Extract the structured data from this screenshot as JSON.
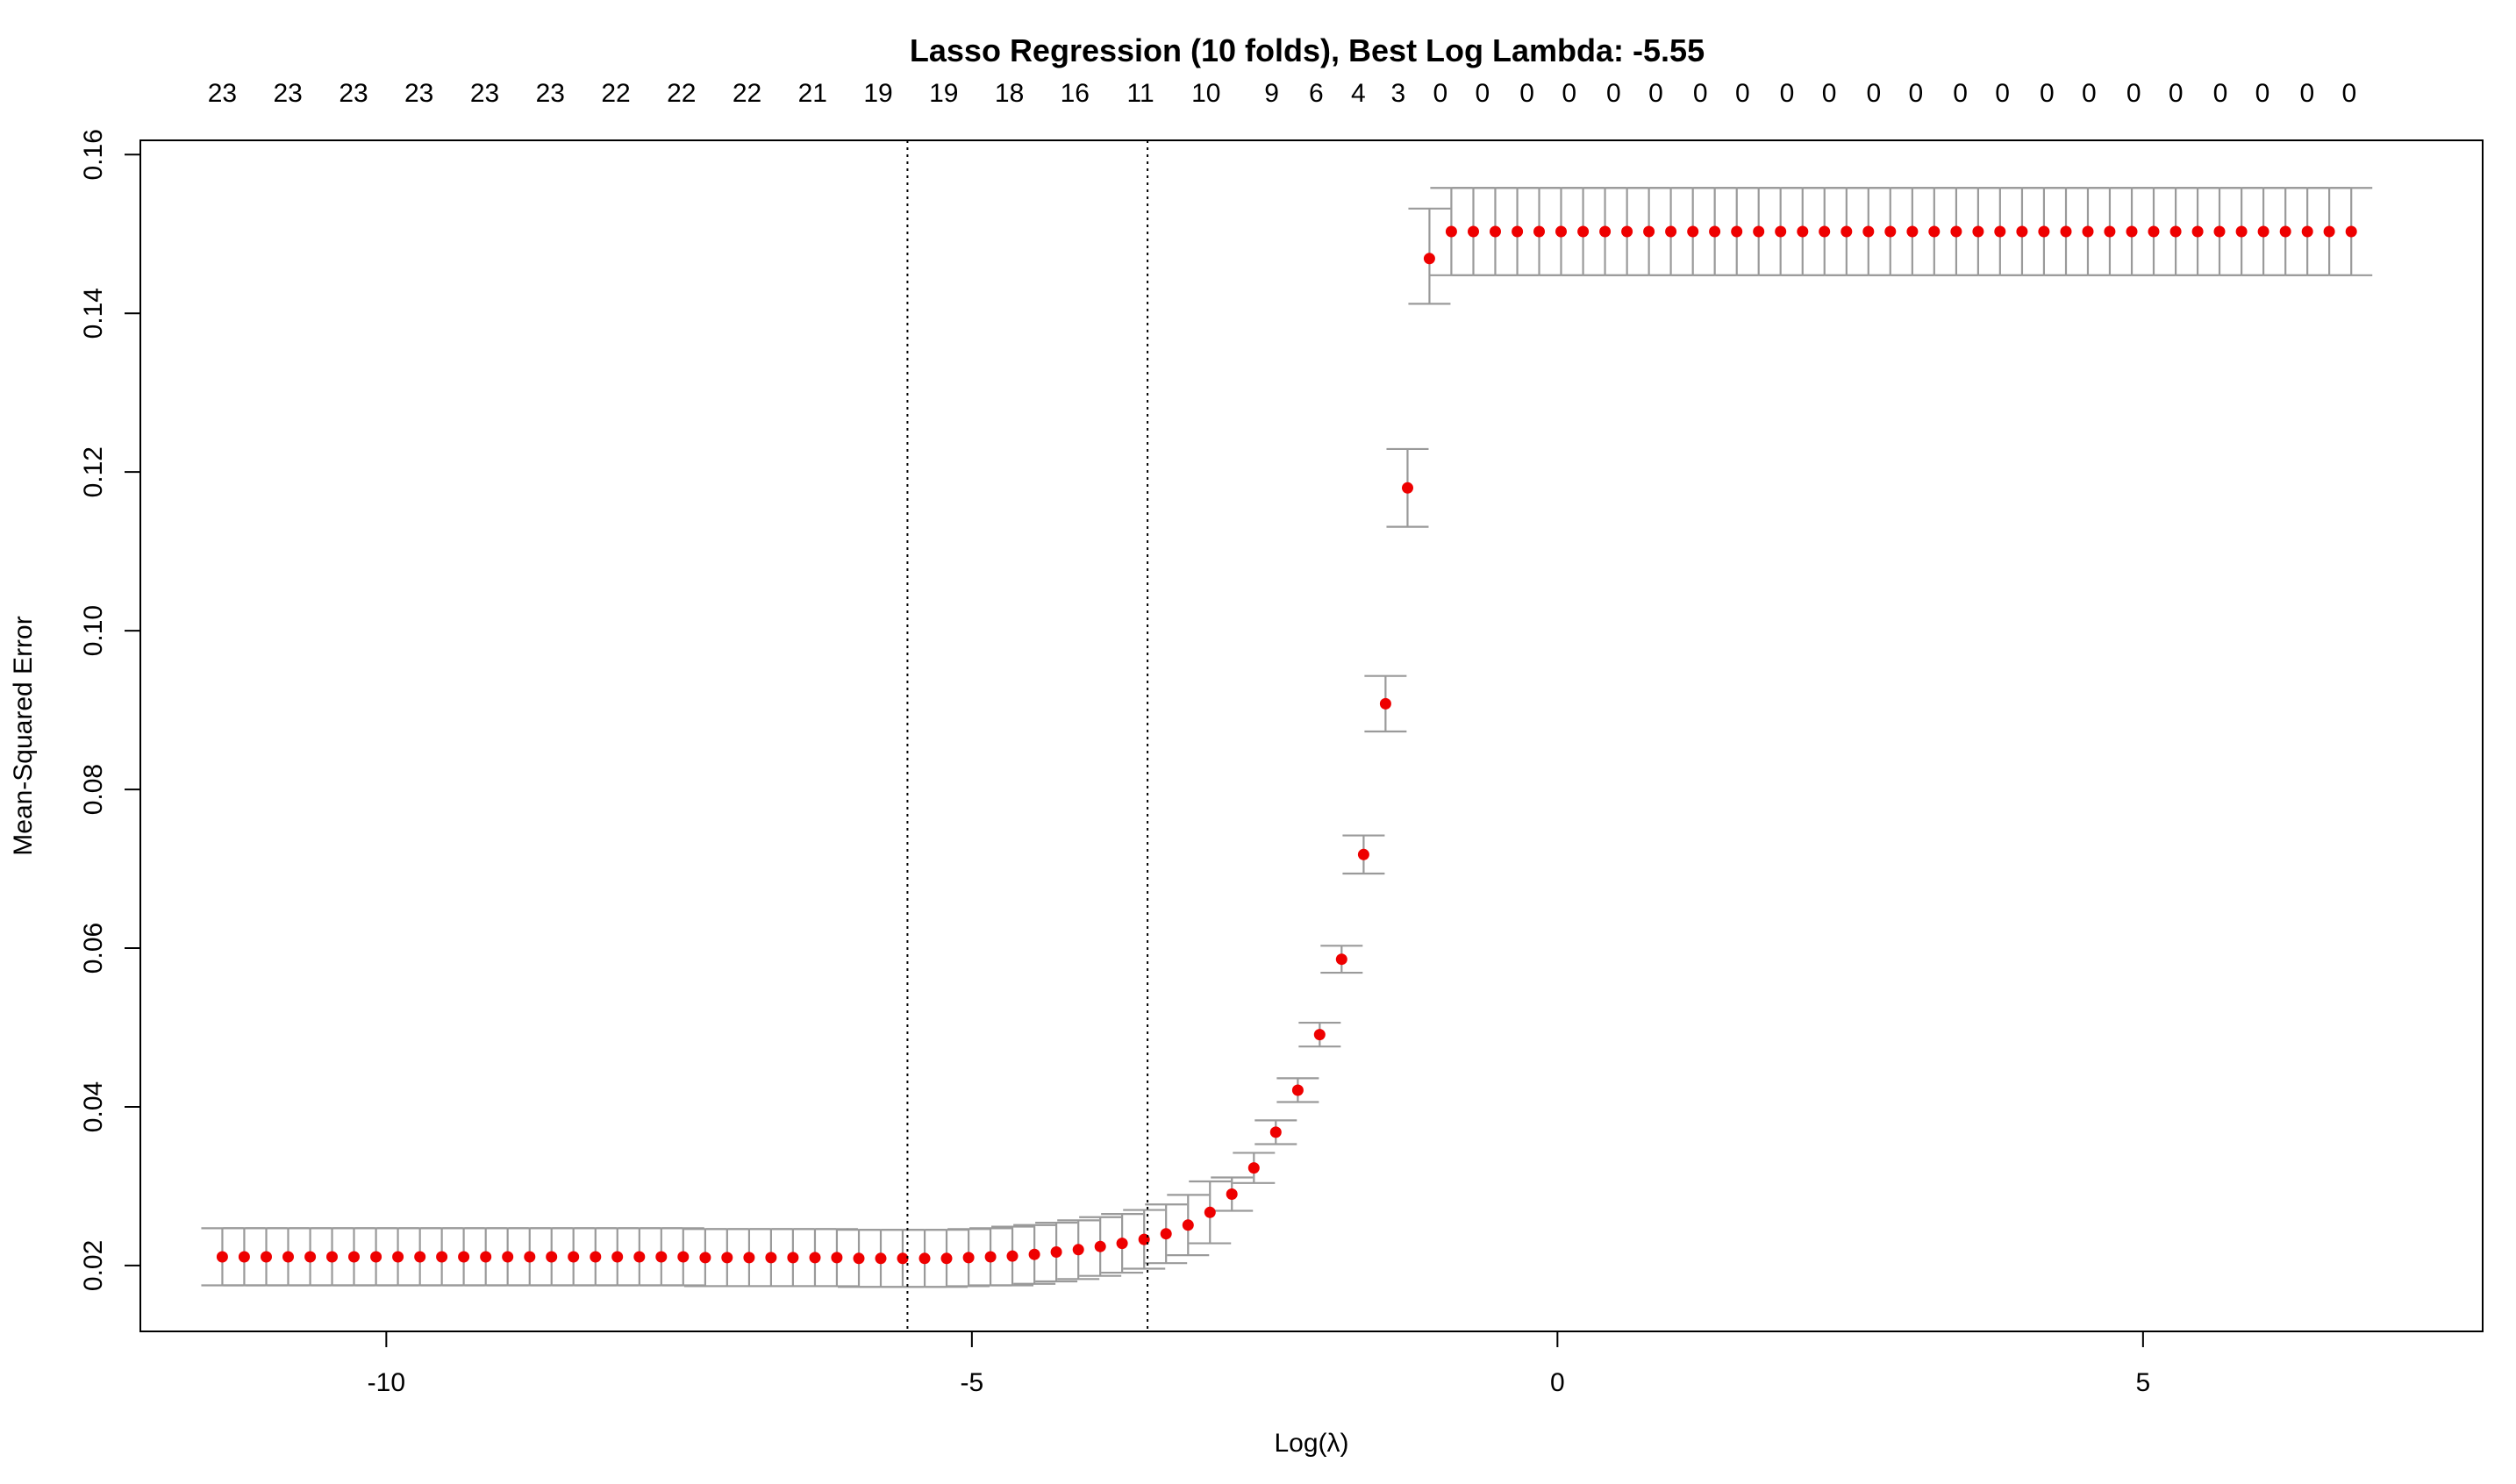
{
  "chart_data": {
    "type": "scatter",
    "title": "Lasso Regression (10 folds), Best Log Lambda: -5.55",
    "xlabel": "Log(λ)",
    "ylabel": "Mean-Squared Error",
    "xlim": [
      -12.1,
      7.9
    ],
    "ylim": [
      0.0117,
      0.1618
    ],
    "x_ticks": [
      -10,
      -5,
      0,
      5
    ],
    "x_tick_labels": [
      "-10",
      "-5",
      "0",
      "5"
    ],
    "y_ticks": [
      0.02,
      0.04,
      0.06,
      0.08,
      0.1,
      0.12,
      0.14,
      0.16
    ],
    "y_tick_labels": [
      "0.02",
      "0.04",
      "0.06",
      "0.08",
      "0.10",
      "0.12",
      "0.14",
      "0.16"
    ],
    "vlines": [
      -5.55,
      -3.5
    ],
    "grid": false,
    "colors": {
      "points": "#ee0000",
      "error_bars": "#9a9a9a",
      "vlines": "#000000",
      "axes": "#000000"
    },
    "top_counts": {
      "x": [
        -11.4,
        -10.84,
        -10.28,
        -9.72,
        -9.16,
        -8.6,
        -8.04,
        -7.48,
        -6.92,
        -6.36,
        -5.8,
        -5.24,
        -4.68,
        -4.12,
        -3.56,
        -3.0,
        -2.44,
        -2.06,
        -1.7,
        -1.36,
        -1.0,
        -0.64,
        -0.26,
        0.1,
        0.48,
        0.84,
        1.22,
        1.58,
        1.96,
        2.32,
        2.7,
        3.06,
        3.44,
        3.8,
        4.18,
        4.54,
        4.92,
        5.28,
        5.66,
        6.02,
        6.4,
        6.76
      ],
      "labels": [
        "23",
        "23",
        "23",
        "23",
        "23",
        "23",
        "22",
        "22",
        "22",
        "21",
        "19",
        "19",
        "18",
        "16",
        "11",
        "10",
        "9",
        "6",
        "4",
        "3",
        "0",
        "0",
        "0",
        "0",
        "0",
        "0",
        "0",
        "0",
        "0",
        "0",
        "0",
        "0",
        "0",
        "0",
        "0",
        "0",
        "0",
        "0",
        "0",
        "0",
        "0",
        "0"
      ]
    },
    "x": [
      -11.4,
      -11.213,
      -11.025,
      -10.838,
      -10.65,
      -10.463,
      -10.276,
      -10.088,
      -9.901,
      -9.713,
      -9.526,
      -9.339,
      -9.151,
      -8.964,
      -8.776,
      -8.589,
      -8.402,
      -8.214,
      -8.027,
      -7.839,
      -7.652,
      -7.465,
      -7.277,
      -7.09,
      -6.902,
      -6.715,
      -6.528,
      -6.34,
      -6.153,
      -5.965,
      -5.778,
      -5.591,
      -5.403,
      -5.216,
      -5.028,
      -4.841,
      -4.654,
      -4.466,
      -4.279,
      -4.091,
      -3.904,
      -3.717,
      -3.529,
      -3.342,
      -3.154,
      -2.967,
      -2.78,
      -2.592,
      -2.405,
      -2.217,
      -2.03,
      -1.843,
      -1.655,
      -1.468,
      -1.28,
      -1.093,
      -0.906,
      -0.718,
      -0.531,
      -0.343,
      -0.156,
      0.031,
      0.219,
      0.406,
      0.594,
      0.781,
      0.968,
      1.156,
      1.343,
      1.531,
      1.718,
      1.905,
      2.093,
      2.28,
      2.468,
      2.655,
      2.842,
      3.03,
      3.217,
      3.405,
      3.592,
      3.779,
      3.967,
      4.154,
      4.342,
      4.529,
      4.716,
      4.904,
      5.091,
      5.279,
      5.466,
      5.653,
      5.841,
      6.028,
      6.216,
      6.403,
      6.59,
      6.778
    ],
    "y": [
      0.0211,
      0.0211,
      0.0211,
      0.0211,
      0.0211,
      0.0211,
      0.0211,
      0.0211,
      0.0211,
      0.0211,
      0.0211,
      0.0211,
      0.0211,
      0.0211,
      0.0211,
      0.0211,
      0.0211,
      0.0211,
      0.0211,
      0.0211,
      0.0211,
      0.0211,
      0.021,
      0.021,
      0.021,
      0.021,
      0.021,
      0.021,
      0.021,
      0.0209,
      0.0209,
      0.0209,
      0.0209,
      0.0209,
      0.021,
      0.0211,
      0.0212,
      0.0214,
      0.0217,
      0.022,
      0.0224,
      0.0228,
      0.0233,
      0.024,
      0.0251,
      0.0267,
      0.029,
      0.0323,
      0.0368,
      0.0421,
      0.0491,
      0.0586,
      0.0718,
      0.0908,
      0.118,
      0.1469,
      0.1503,
      0.1503,
      0.1503,
      0.1503,
      0.1503,
      0.1503,
      0.1503,
      0.1503,
      0.1503,
      0.1503,
      0.1503,
      0.1503,
      0.1503,
      0.1503,
      0.1503,
      0.1503,
      0.1503,
      0.1503,
      0.1503,
      0.1503,
      0.1503,
      0.1503,
      0.1503,
      0.1503,
      0.1503,
      0.1503,
      0.1503,
      0.1503,
      0.1503,
      0.1503,
      0.1503,
      0.1503,
      0.1503,
      0.1503,
      0.1503,
      0.1503,
      0.1503,
      0.1503,
      0.1503,
      0.1503,
      0.1503,
      0.1503
    ],
    "upper": [
      0.0247,
      0.0247,
      0.0247,
      0.0247,
      0.0247,
      0.0247,
      0.0247,
      0.0247,
      0.0247,
      0.0247,
      0.0247,
      0.0247,
      0.0247,
      0.0247,
      0.0247,
      0.0247,
      0.0247,
      0.0247,
      0.0247,
      0.0247,
      0.0247,
      0.0247,
      0.0246,
      0.0246,
      0.0246,
      0.0246,
      0.0246,
      0.0246,
      0.0246,
      0.0245,
      0.0245,
      0.0245,
      0.0245,
      0.0245,
      0.0246,
      0.0247,
      0.0249,
      0.0251,
      0.0254,
      0.0257,
      0.0261,
      0.0265,
      0.027,
      0.0277,
      0.0289,
      0.0306,
      0.0311,
      0.0342,
      0.0383,
      0.0436,
      0.0506,
      0.0603,
      0.0742,
      0.0943,
      0.1229,
      0.1532,
      0.1558,
      0.1558,
      0.1558,
      0.1558,
      0.1558,
      0.1558,
      0.1558,
      0.1558,
      0.1558,
      0.1558,
      0.1558,
      0.1558,
      0.1558,
      0.1558,
      0.1558,
      0.1558,
      0.1558,
      0.1558,
      0.1558,
      0.1558,
      0.1558,
      0.1558,
      0.1558,
      0.1558,
      0.1558,
      0.1558,
      0.1558,
      0.1558,
      0.1558,
      0.1558,
      0.1558,
      0.1558,
      0.1558,
      0.1558,
      0.1558,
      0.1558,
      0.1558,
      0.1558,
      0.1558,
      0.1558,
      0.1558,
      0.1558
    ],
    "lower": [
      0.0175,
      0.0175,
      0.0175,
      0.0175,
      0.0175,
      0.0175,
      0.0175,
      0.0175,
      0.0175,
      0.0175,
      0.0175,
      0.0175,
      0.0175,
      0.0175,
      0.0175,
      0.0175,
      0.0175,
      0.0175,
      0.0175,
      0.0175,
      0.0175,
      0.0175,
      0.0174,
      0.0174,
      0.0174,
      0.0174,
      0.0174,
      0.0174,
      0.0174,
      0.0173,
      0.0173,
      0.0173,
      0.0173,
      0.0173,
      0.0174,
      0.0175,
      0.0175,
      0.0177,
      0.018,
      0.0183,
      0.0187,
      0.0191,
      0.0196,
      0.0203,
      0.0213,
      0.0228,
      0.0269,
      0.0304,
      0.0353,
      0.0406,
      0.0476,
      0.0569,
      0.0694,
      0.0873,
      0.1131,
      0.1412,
      0.1448,
      0.1448,
      0.1448,
      0.1448,
      0.1448,
      0.1448,
      0.1448,
      0.1448,
      0.1448,
      0.1448,
      0.1448,
      0.1448,
      0.1448,
      0.1448,
      0.1448,
      0.1448,
      0.1448,
      0.1448,
      0.1448,
      0.1448,
      0.1448,
      0.1448,
      0.1448,
      0.1448,
      0.1448,
      0.1448,
      0.1448,
      0.1448,
      0.1448,
      0.1448,
      0.1448,
      0.1448,
      0.1448,
      0.1448,
      0.1448,
      0.1448,
      0.1448,
      0.1448,
      0.1448,
      0.1448,
      0.1448,
      0.1448
    ]
  }
}
